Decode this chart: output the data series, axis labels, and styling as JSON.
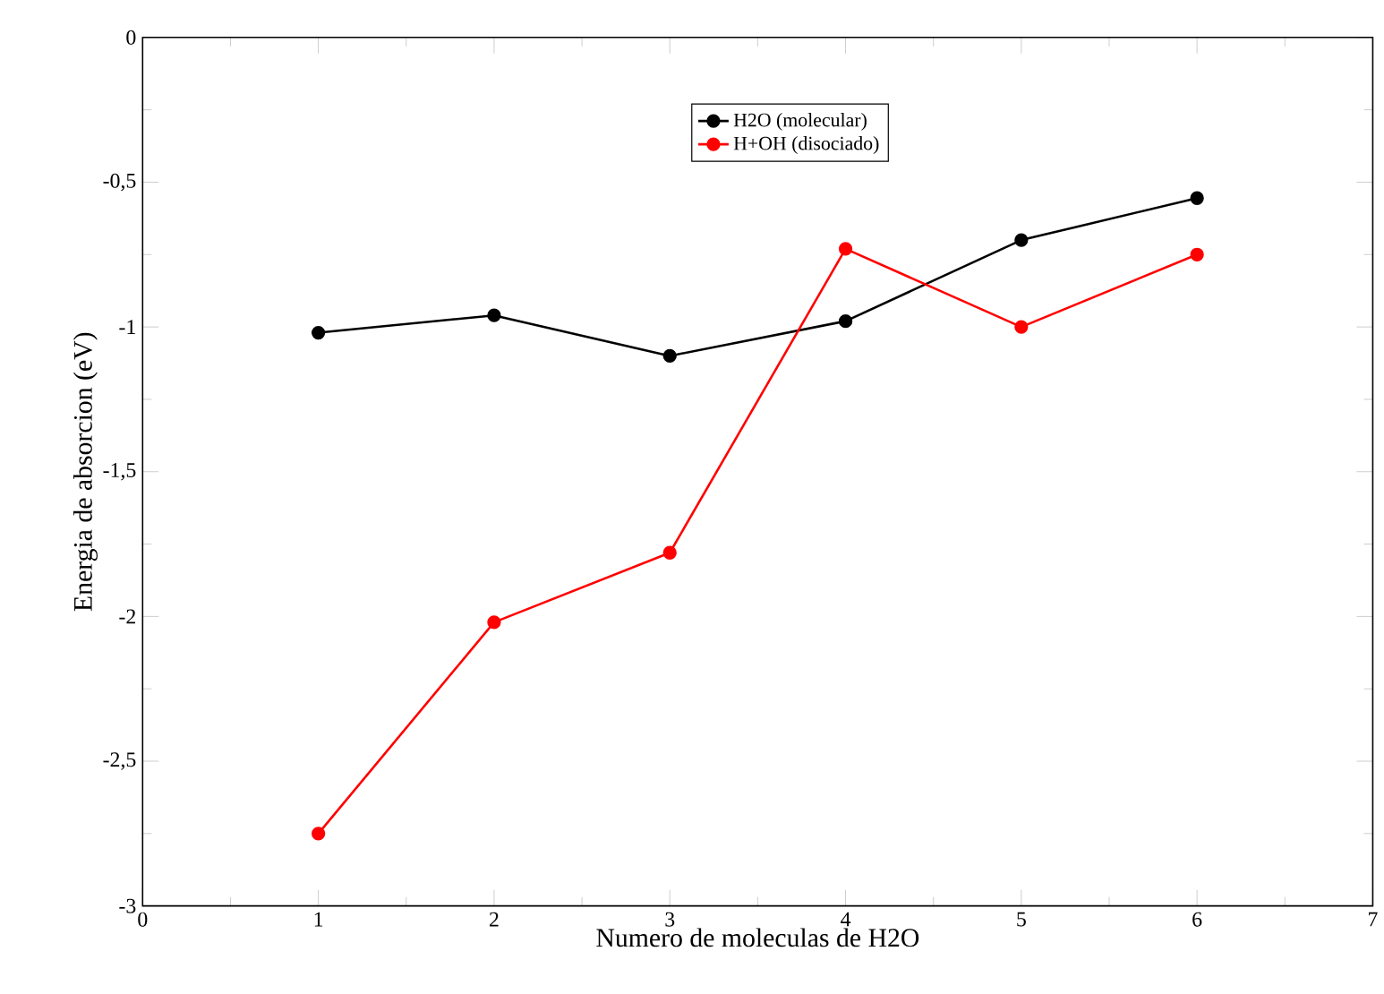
{
  "chart_data": {
    "type": "line",
    "xlabel": "Numero de moleculas de H2O",
    "ylabel": "Energia de absorcion (eV)",
    "x": [
      1,
      2,
      3,
      4,
      5,
      6
    ],
    "series": [
      {
        "name": "H2O (molecular)",
        "color": "#000000",
        "values": [
          -1.02,
          -0.96,
          -1.1,
          -0.98,
          -0.7,
          -0.555
        ]
      },
      {
        "name": "H+OH (disociado)",
        "color": "#ff0000",
        "values": [
          -2.75,
          -2.02,
          -1.78,
          -0.73,
          -1.0,
          -0.75
        ]
      }
    ],
    "xlim": [
      0,
      7
    ],
    "xticks": [
      0,
      1,
      2,
      3,
      4,
      5,
      6,
      7
    ],
    "ylim": [
      -3,
      0
    ],
    "yticks": [
      {
        "value": -3,
        "label": "-3"
      },
      {
        "value": -2.5,
        "label": "-2,5"
      },
      {
        "value": -2,
        "label": "-2"
      },
      {
        "value": -1.5,
        "label": "-1,5"
      },
      {
        "value": -1,
        "label": "-1"
      },
      {
        "value": -0.5,
        "label": "-0,5"
      },
      {
        "value": 0,
        "label": "0"
      }
    ],
    "legend": "top",
    "marker": "circle",
    "line_style": "solid",
    "grid": false
  }
}
